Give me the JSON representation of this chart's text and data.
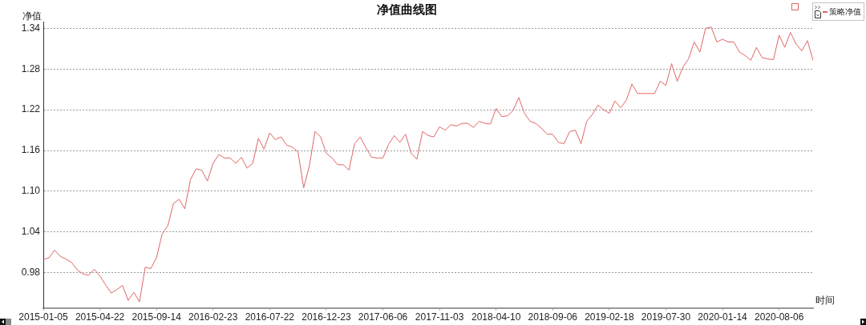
{
  "chart_data": {
    "type": "line",
    "title": "净值曲线图",
    "ylabel": "净值",
    "xlabel": "时间",
    "categories": [
      "2015-01-05",
      null,
      null,
      null,
      null,
      null,
      null,
      null,
      null,
      null,
      "2015-04-22",
      null,
      null,
      null,
      null,
      null,
      null,
      null,
      null,
      null,
      "2015-09-14",
      null,
      null,
      null,
      null,
      null,
      null,
      null,
      null,
      null,
      "2016-02-23",
      null,
      null,
      null,
      null,
      null,
      null,
      null,
      null,
      null,
      "2016-07-22",
      null,
      null,
      null,
      null,
      null,
      null,
      null,
      null,
      null,
      "2016-12-23",
      null,
      null,
      null,
      null,
      null,
      null,
      null,
      null,
      null,
      "2017-06-06",
      null,
      null,
      null,
      null,
      null,
      null,
      null,
      null,
      null,
      "2017-11-03",
      null,
      null,
      null,
      null,
      null,
      null,
      null,
      null,
      null,
      "2018-04-10",
      null,
      null,
      null,
      null,
      null,
      null,
      null,
      null,
      null,
      "2018-09-06",
      null,
      null,
      null,
      null,
      null,
      null,
      null,
      null,
      null,
      "2019-02-18",
      null,
      null,
      null,
      null,
      null,
      null,
      null,
      null,
      null,
      "2019-07-30",
      null,
      null,
      null,
      null,
      null,
      null,
      null,
      null,
      null,
      "2020-01-14",
      null,
      null,
      null,
      null,
      null,
      null,
      null,
      null,
      null,
      "2020-08-06",
      null,
      null,
      null,
      null,
      null,
      null
    ],
    "series": [
      {
        "name": "策略净值",
        "color": "#e06666",
        "values": [
          0.999,
          1.002,
          1.013,
          1.004,
          1.0,
          0.995,
          0.984,
          0.978,
          0.976,
          0.985,
          0.975,
          0.962,
          0.95,
          0.955,
          0.961,
          0.939,
          0.951,
          0.937,
          0.988,
          0.986,
          1.002,
          1.037,
          1.049,
          1.082,
          1.088,
          1.074,
          1.117,
          1.133,
          1.131,
          1.115,
          1.141,
          1.154,
          1.149,
          1.149,
          1.141,
          1.15,
          1.134,
          1.141,
          1.178,
          1.162,
          1.186,
          1.176,
          1.18,
          1.168,
          1.165,
          1.158,
          1.105,
          1.137,
          1.188,
          1.18,
          1.156,
          1.149,
          1.139,
          1.139,
          1.131,
          1.17,
          1.18,
          1.164,
          1.15,
          1.149,
          1.149,
          1.169,
          1.182,
          1.172,
          1.184,
          1.156,
          1.147,
          1.188,
          1.182,
          1.18,
          1.195,
          1.19,
          1.198,
          1.196,
          1.2,
          1.2,
          1.194,
          1.203,
          1.2,
          1.199,
          1.222,
          1.21,
          1.211,
          1.219,
          1.238,
          1.215,
          1.203,
          1.2,
          1.193,
          1.184,
          1.184,
          1.172,
          1.17,
          1.188,
          1.19,
          1.17,
          1.203,
          1.213,
          1.227,
          1.22,
          1.215,
          1.233,
          1.223,
          1.234,
          1.258,
          1.244,
          1.244,
          1.244,
          1.244,
          1.262,
          1.256,
          1.288,
          1.262,
          1.283,
          1.295,
          1.32,
          1.305,
          1.34,
          1.342,
          1.32,
          1.324,
          1.32,
          1.32,
          1.305,
          1.3,
          1.293,
          1.312,
          1.297,
          1.295,
          1.294,
          1.33,
          1.312,
          1.334,
          1.317,
          1.307,
          1.322,
          1.293
        ]
      }
    ],
    "ylim": [
      0.928,
      1.35
    ],
    "yticks": [
      0.98,
      1.04,
      {
        "value": 1.1,
        "label": "1.10"
      },
      1.16,
      1.22,
      1.28,
      1.34
    ],
    "grid": "y",
    "legend": "top right"
  }
}
